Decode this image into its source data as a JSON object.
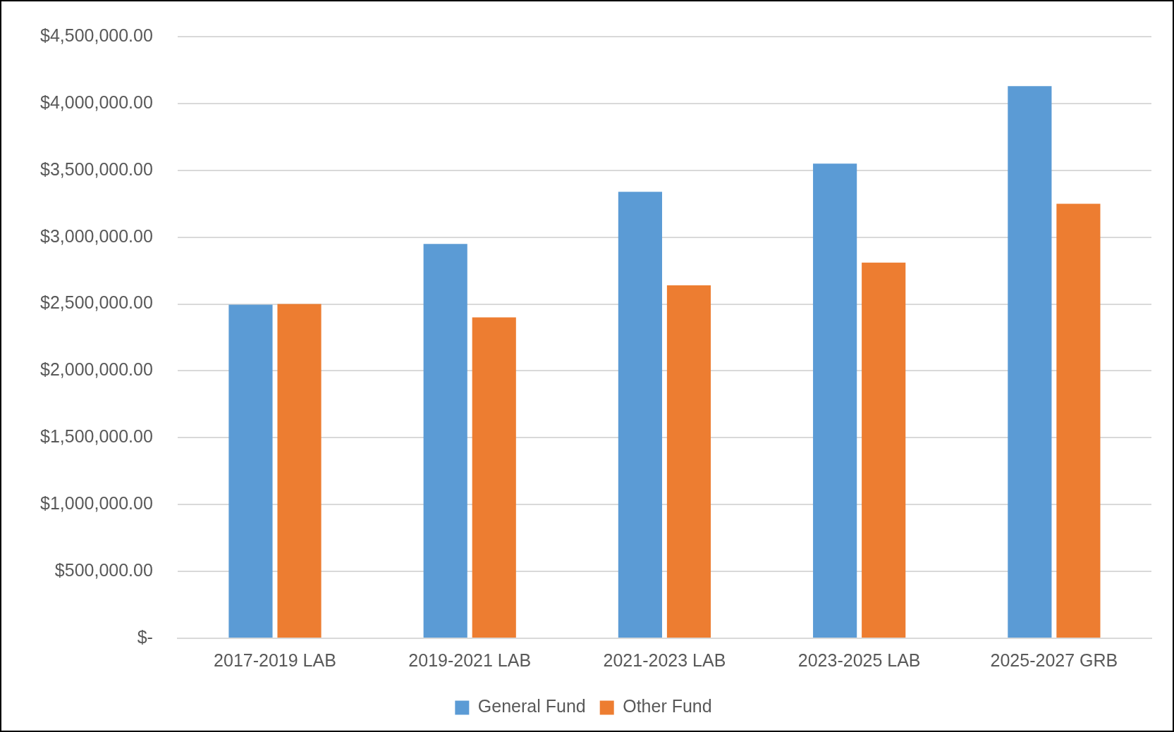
{
  "chart_data": {
    "type": "bar",
    "categories": [
      "2017-2019 LAB",
      "2019-2021 LAB",
      "2021-2023 LAB",
      "2023-2025 LAB",
      "2025-2027 GRB"
    ],
    "series": [
      {
        "name": "General Fund",
        "color": "#5b9bd5",
        "values": [
          2495000,
          2950000,
          3340000,
          3550000,
          4130000
        ]
      },
      {
        "name": "Other Fund",
        "color": "#ed7d31",
        "values": [
          2500000,
          2400000,
          2640000,
          2810000,
          3250000
        ]
      }
    ],
    "ylim": [
      0,
      4500000
    ],
    "yticks": [
      {
        "value": 0,
        "label": "$-"
      },
      {
        "value": 500000,
        "label": "$500,000.00"
      },
      {
        "value": 1000000,
        "label": "$1,000,000.00"
      },
      {
        "value": 1500000,
        "label": "$1,500,000.00"
      },
      {
        "value": 2000000,
        "label": "$2,000,000.00"
      },
      {
        "value": 2500000,
        "label": "$2,500,000.00"
      },
      {
        "value": 3000000,
        "label": "$3,000,000.00"
      },
      {
        "value": 3500000,
        "label": "$3,500,000.00"
      },
      {
        "value": 4000000,
        "label": "$4,000,000.00"
      },
      {
        "value": 4500000,
        "label": "$4,500,000.00"
      }
    ],
    "grid": "y",
    "legend": "bottom"
  }
}
